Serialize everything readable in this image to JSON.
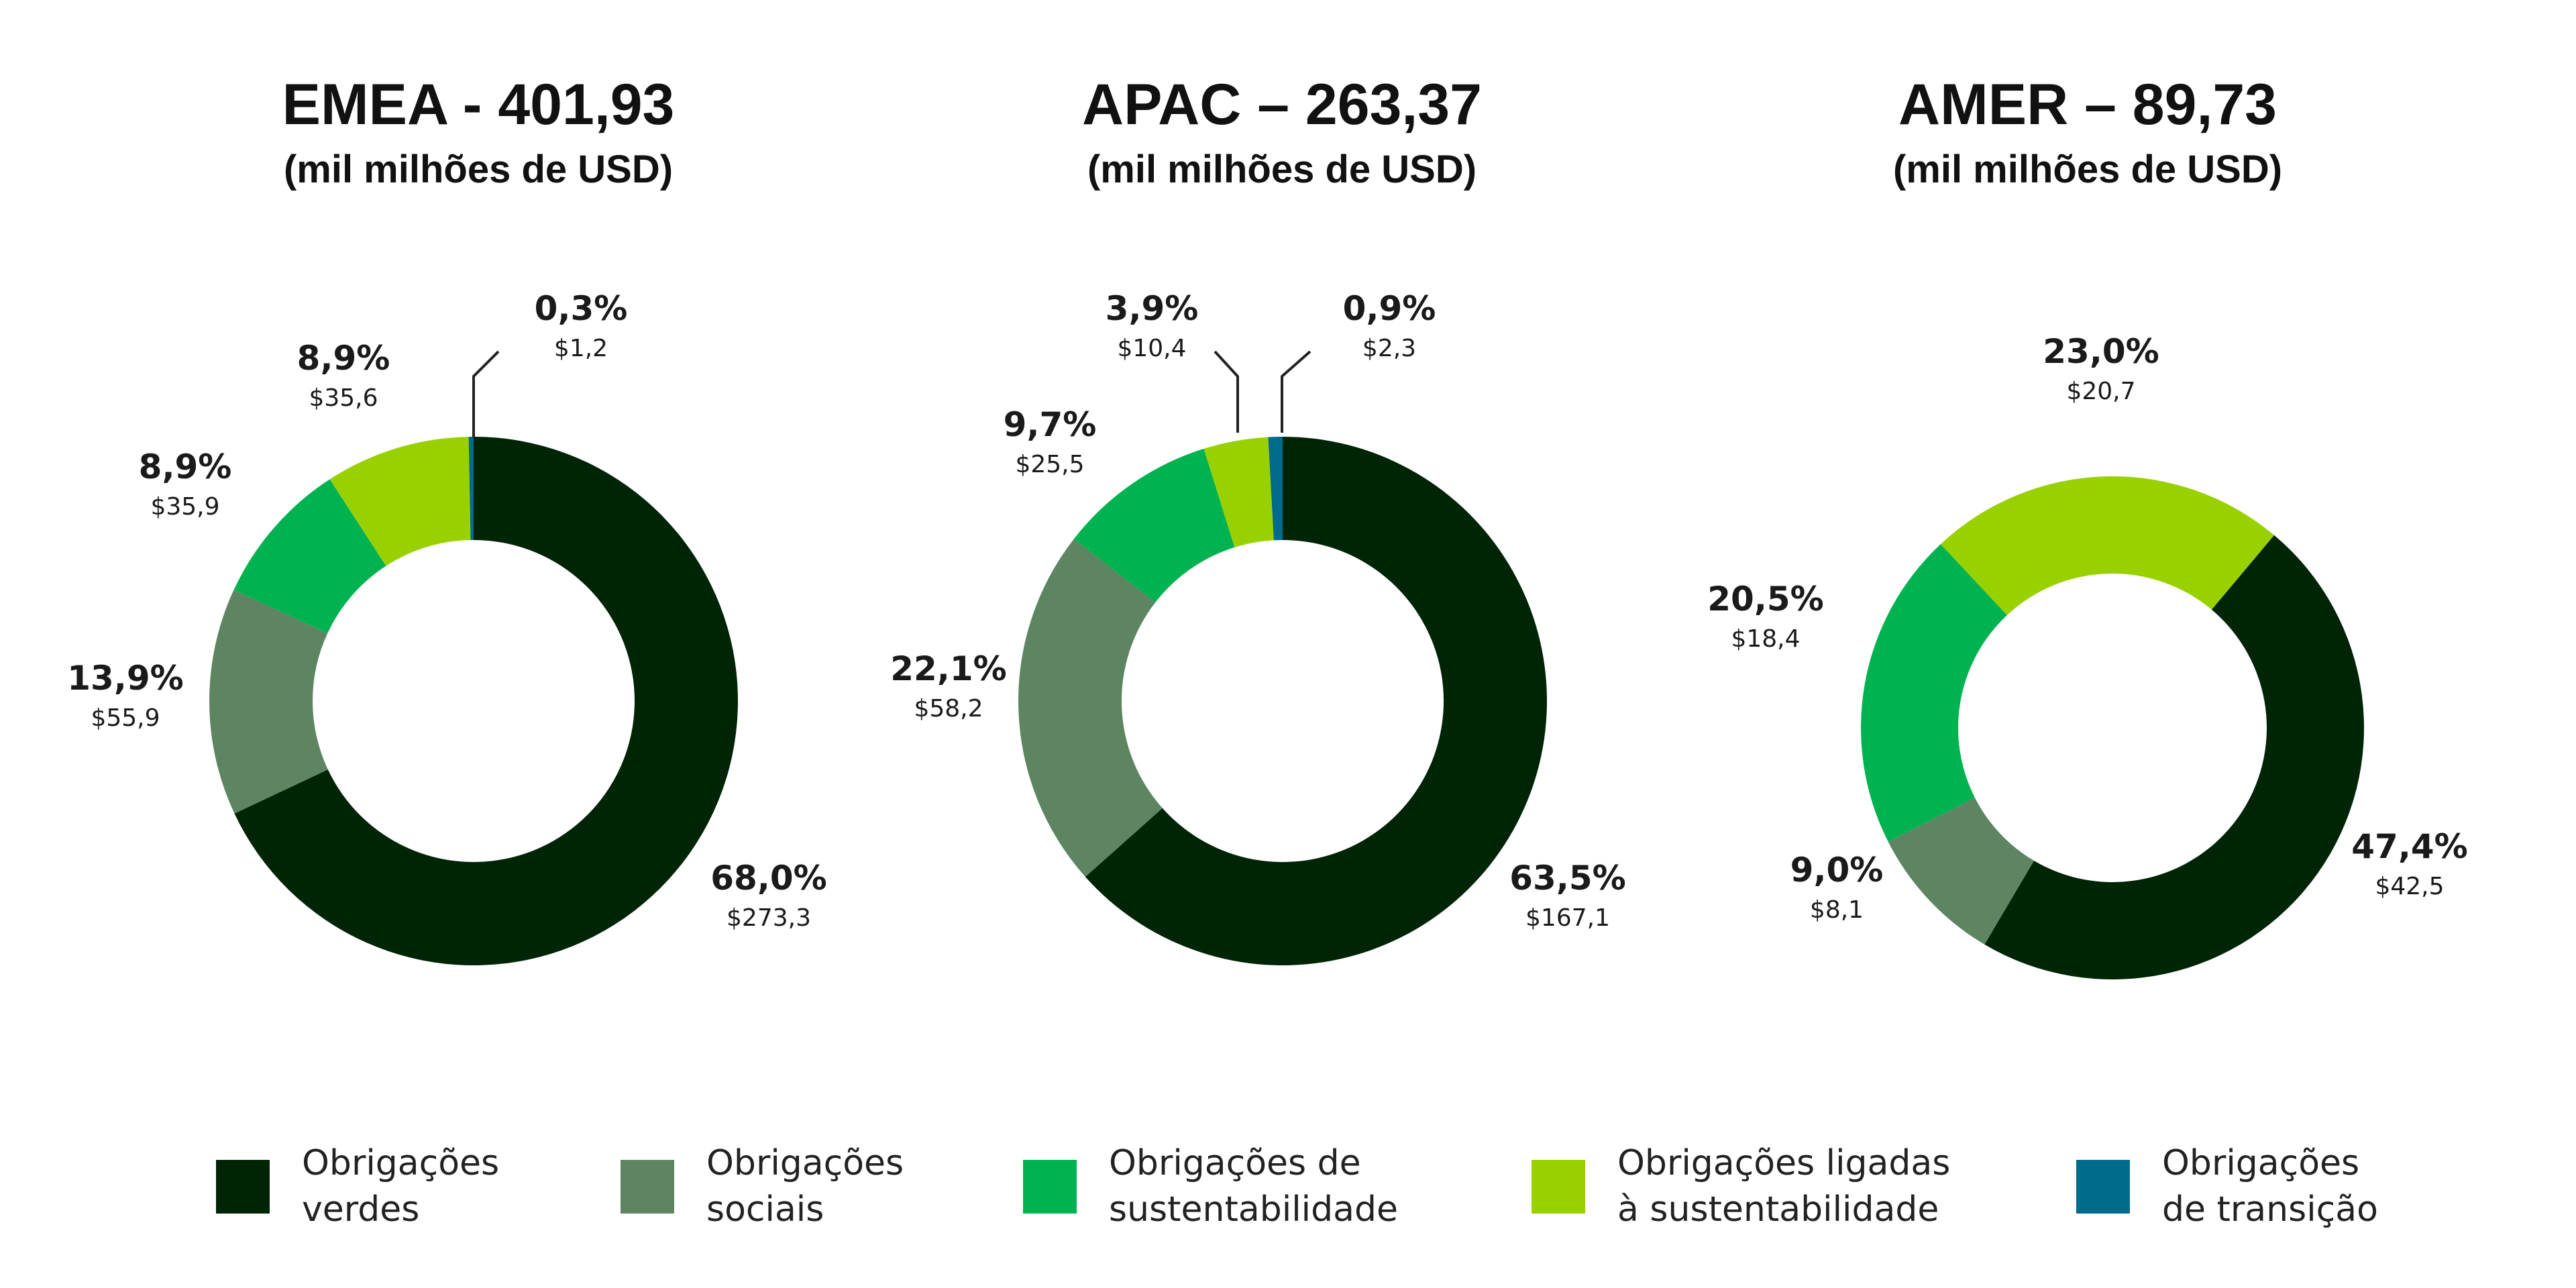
{
  "chart_data": [
    {
      "type": "pie",
      "title": "EMEA - 401,93",
      "subtitle": "(mil milhões de USD)",
      "categories": [
        "Obrigações verdes",
        "Obrigações sociais",
        "Obrigações de sustentabilidade",
        "Obrigações ligadas à sustentabilidade",
        "Obrigações de transição"
      ],
      "values": [
        273.3,
        55.9,
        35.9,
        35.6,
        1.2
      ],
      "percent_labels": [
        "68,0%",
        "13,9%",
        "8,9%",
        "8,9%",
        "0,3%"
      ],
      "value_labels": [
        "$273,3",
        "$55,9",
        "$35,9",
        "$35,6",
        "$1,2"
      ]
    },
    {
      "type": "pie",
      "title": "APAC – 263,37",
      "subtitle": "(mil milhões de USD)",
      "categories": [
        "Obrigações verdes",
        "Obrigações sociais",
        "Obrigações de sustentabilidade",
        "Obrigações ligadas à sustentabilidade",
        "Obrigações de transição"
      ],
      "values": [
        167.1,
        58.2,
        25.5,
        10.4,
        2.3
      ],
      "percent_labels": [
        "63,5%",
        "22,1%",
        "9,7%",
        "3,9%",
        "0,9%"
      ],
      "value_labels": [
        "$167,1",
        "$58,2",
        "$25,5",
        "$10,4",
        "$2,3"
      ]
    },
    {
      "type": "pie",
      "title": "AMER – 89,73",
      "subtitle": "(mil milhões de USD)",
      "categories": [
        "Obrigações verdes",
        "Obrigações sociais",
        "Obrigações de sustentabilidade",
        "Obrigações ligadas à sustentabilidade"
      ],
      "values": [
        42.5,
        8.1,
        18.4,
        20.7
      ],
      "percent_labels": [
        "47,4%",
        "9,0%",
        "20,5%",
        "23,0%"
      ],
      "value_labels": [
        "$42,5",
        "$8,1",
        "$18,4",
        "$20,7"
      ]
    }
  ],
  "legend": [
    {
      "line1": "Obrigações",
      "line2": "verdes",
      "color": "#002406"
    },
    {
      "line1": "Obrigações",
      "line2": "sociais",
      "color": "#5e8561"
    },
    {
      "line1": "Obrigações de",
      "line2": "sustentabilidade",
      "color": "#00b350"
    },
    {
      "line1": "Obrigações ligadas",
      "line2": "à sustentabilidade",
      "color": "#99d100"
    },
    {
      "line1": "Obrigações",
      "line2": "de transição",
      "color": "#006b8a"
    }
  ]
}
